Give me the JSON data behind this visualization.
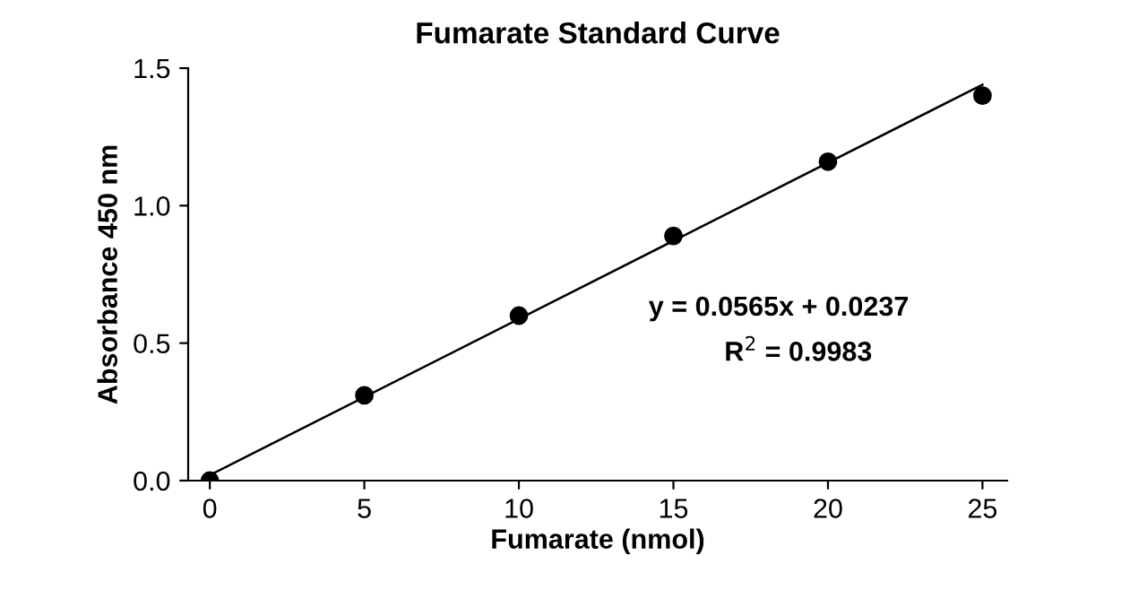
{
  "chart_data": {
    "type": "scatter",
    "title": "Fumarate Standard Curve",
    "xlabel": "Fumarate (nmol)",
    "ylabel": "Absorbance 450 nm",
    "x": [
      0,
      5,
      10,
      15,
      20,
      25
    ],
    "series": [
      {
        "color": "#000000",
        "marker": "circle",
        "values": [
          0.0,
          0.31,
          0.6,
          0.89,
          1.16,
          1.4
        ]
      },
      {
        "type": "line",
        "color": "#000000",
        "marker": "none",
        "line_style": "solid",
        "x": [
          0,
          25
        ],
        "values": [
          0.02,
          1.44
        ]
      }
    ],
    "xlim": [
      -0.7,
      25.8
    ],
    "ylim": [
      0,
      1.5
    ],
    "xticks": [
      0,
      5,
      10,
      15,
      20,
      25
    ],
    "yticks": [
      {
        "value": 0,
        "label": "0.0"
      },
      {
        "value": 0.5,
        "label": "0.5"
      },
      {
        "value": 1.0,
        "label": "1.0"
      },
      {
        "value": 1.5,
        "label": "1.5"
      }
    ],
    "grid": false,
    "legend": false,
    "annotations": [
      "y = 0.0565x + 0.0237",
      "R$^{2}$ = 0.9983"
    ]
  }
}
